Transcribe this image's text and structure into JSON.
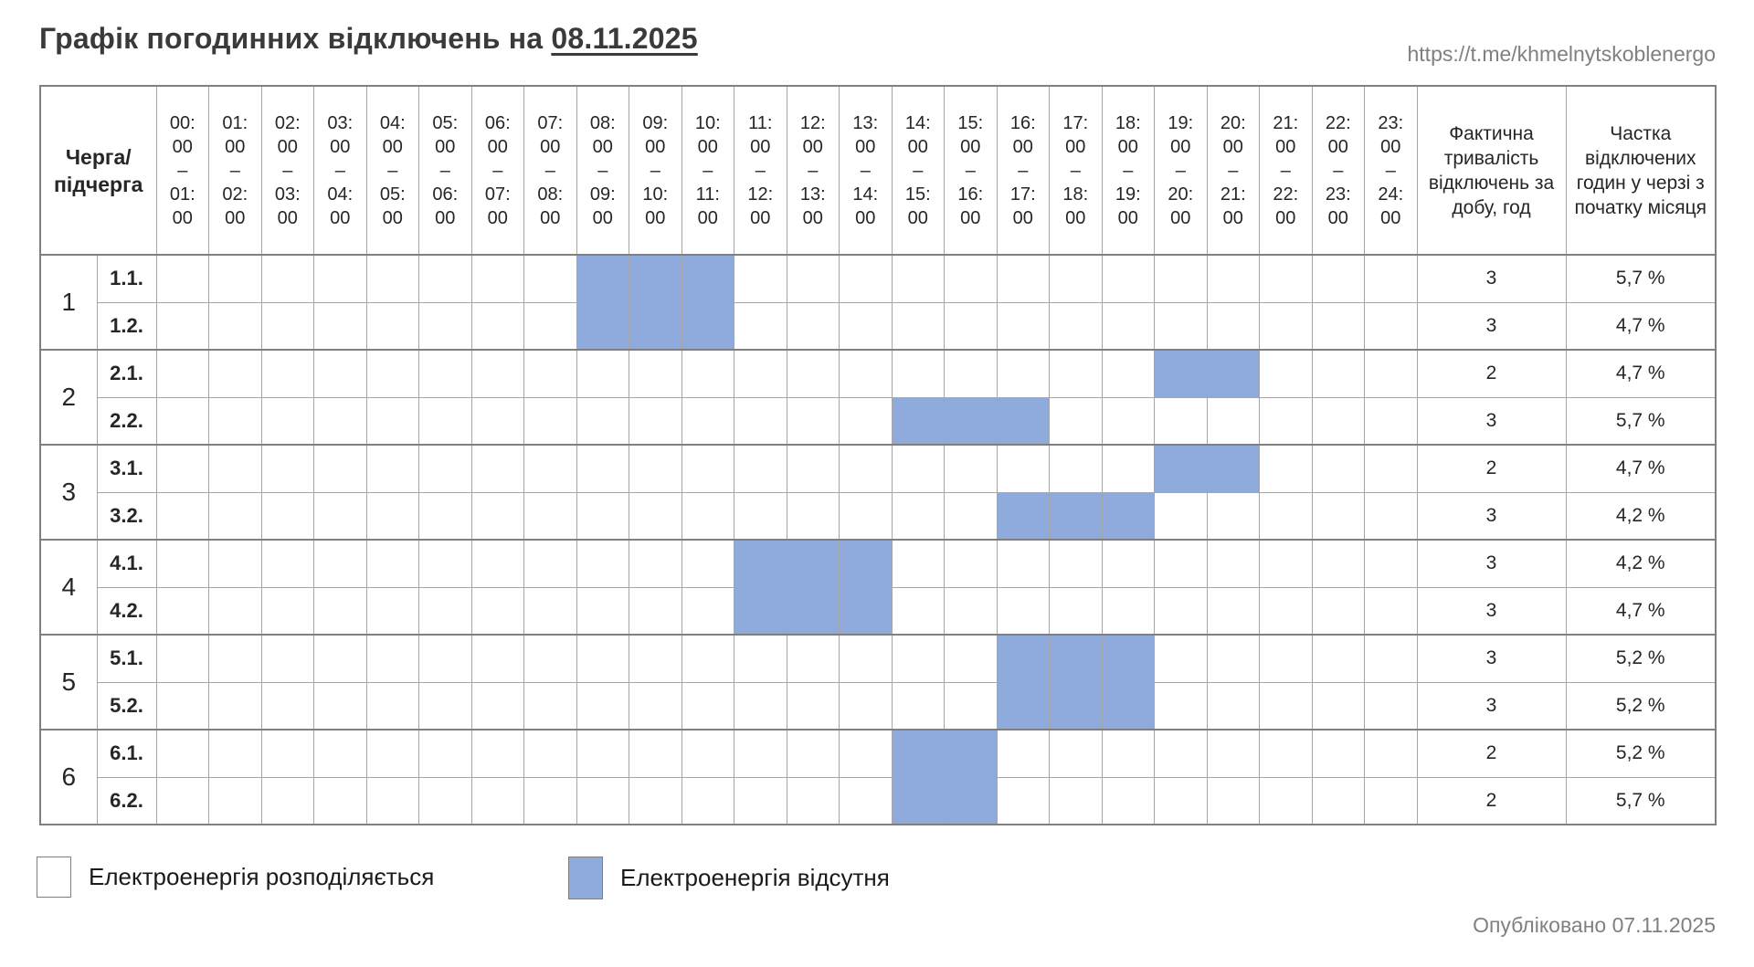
{
  "page": {
    "title_prefix": "Графік погодинних відключень на",
    "title_date": "08.11.2025",
    "link": "https://t.me/khmelnytskoblenergo",
    "published": "Опубліковано 07.11.2025"
  },
  "colors": {
    "outage_blue": "#8FAADC",
    "grid_line": "#A6A6A6",
    "outer_line": "#7F7F7F",
    "muted_text": "#808080",
    "title_text": "#3A3A3A"
  },
  "table": {
    "corner_header": "Черга/\nпідчерга",
    "duration_header": "Фактична тривалість відключень за добу, год",
    "share_header": "Частка відключених годин у черзі з початку місяця",
    "time_slots": [
      {
        "start": "00:00",
        "end": "01:00"
      },
      {
        "start": "01:00",
        "end": "02:00"
      },
      {
        "start": "02:00",
        "end": "03:00"
      },
      {
        "start": "03:00",
        "end": "04:00"
      },
      {
        "start": "04:00",
        "end": "05:00"
      },
      {
        "start": "05:00",
        "end": "06:00"
      },
      {
        "start": "06:00",
        "end": "07:00"
      },
      {
        "start": "07:00",
        "end": "08:00"
      },
      {
        "start": "08:00",
        "end": "09:00"
      },
      {
        "start": "09:00",
        "end": "10:00"
      },
      {
        "start": "10:00",
        "end": "11:00"
      },
      {
        "start": "11:00",
        "end": "12:00"
      },
      {
        "start": "12:00",
        "end": "13:00"
      },
      {
        "start": "13:00",
        "end": "14:00"
      },
      {
        "start": "14:00",
        "end": "15:00"
      },
      {
        "start": "15:00",
        "end": "16:00"
      },
      {
        "start": "16:00",
        "end": "17:00"
      },
      {
        "start": "17:00",
        "end": "18:00"
      },
      {
        "start": "18:00",
        "end": "19:00"
      },
      {
        "start": "19:00",
        "end": "20:00"
      },
      {
        "start": "20:00",
        "end": "21:00"
      },
      {
        "start": "21:00",
        "end": "22:00"
      },
      {
        "start": "22:00",
        "end": "23:00"
      },
      {
        "start": "23:00",
        "end": "24:00"
      }
    ],
    "groups": [
      {
        "number": "1",
        "rows": [
          {
            "label": "1.1.",
            "outage_hours": [
              8,
              9,
              10
            ],
            "duration": "3",
            "share": "5,7 %"
          },
          {
            "label": "1.2.",
            "outage_hours": [
              8,
              9,
              10
            ],
            "duration": "3",
            "share": "4,7 %"
          }
        ]
      },
      {
        "number": "2",
        "rows": [
          {
            "label": "2.1.",
            "outage_hours": [
              19,
              20
            ],
            "duration": "2",
            "share": "4,7 %"
          },
          {
            "label": "2.2.",
            "outage_hours": [
              14,
              15,
              16
            ],
            "duration": "3",
            "share": "5,7 %"
          }
        ]
      },
      {
        "number": "3",
        "rows": [
          {
            "label": "3.1.",
            "outage_hours": [
              19,
              20
            ],
            "duration": "2",
            "share": "4,7 %"
          },
          {
            "label": "3.2.",
            "outage_hours": [
              16,
              17,
              18
            ],
            "duration": "3",
            "share": "4,2 %"
          }
        ]
      },
      {
        "number": "4",
        "rows": [
          {
            "label": "4.1.",
            "outage_hours": [
              11,
              12,
              13
            ],
            "duration": "3",
            "share": "4,2 %"
          },
          {
            "label": "4.2.",
            "outage_hours": [
              11,
              12,
              13
            ],
            "duration": "3",
            "share": "4,7 %"
          }
        ]
      },
      {
        "number": "5",
        "rows": [
          {
            "label": "5.1.",
            "outage_hours": [
              16,
              17,
              18
            ],
            "duration": "3",
            "share": "5,2 %"
          },
          {
            "label": "5.2.",
            "outage_hours": [
              16,
              17,
              18
            ],
            "duration": "3",
            "share": "5,2 %"
          }
        ]
      },
      {
        "number": "6",
        "rows": [
          {
            "label": "6.1.",
            "outage_hours": [
              14,
              15
            ],
            "duration": "2",
            "share": "5,2 %"
          },
          {
            "label": "6.2.",
            "outage_hours": [
              14,
              15
            ],
            "duration": "2",
            "share": "5,7 %"
          }
        ]
      }
    ]
  },
  "legend": {
    "items": [
      {
        "label": "Електроенергія розподіляється",
        "meaning": "power-distributed",
        "swatch": "white"
      },
      {
        "label": "Електроенергія відсутня",
        "meaning": "power-absent",
        "swatch": "blue"
      }
    ]
  },
  "chart_data": {
    "type": "table",
    "title": "Графік погодинних відключень на 08.11.2025",
    "x_categories": [
      "00:00–01:00",
      "01:00–02:00",
      "02:00–03:00",
      "03:00–04:00",
      "04:00–05:00",
      "05:00–06:00",
      "06:00–07:00",
      "07:00–08:00",
      "08:00–09:00",
      "09:00–10:00",
      "10:00–11:00",
      "11:00–12:00",
      "12:00–13:00",
      "13:00–14:00",
      "14:00–15:00",
      "15:00–16:00",
      "16:00–17:00",
      "17:00–18:00",
      "18:00–19:00",
      "19:00–20:00",
      "20:00–21:00",
      "21:00–22:00",
      "22:00–23:00",
      "23:00–24:00"
    ],
    "row_header": "Черга/підчерга",
    "value_columns": [
      "Фактична тривалість відключень за добу, год",
      "Частка відключених годин у черзі з початку місяця"
    ],
    "rows": [
      {
        "queue": "1.1.",
        "outage_intervals": [
          "08:00–11:00"
        ],
        "outage_hours": [
          8,
          9,
          10
        ],
        "daily_duration_h": 3,
        "month_share_pct": 5.7
      },
      {
        "queue": "1.2.",
        "outage_intervals": [
          "08:00–11:00"
        ],
        "outage_hours": [
          8,
          9,
          10
        ],
        "daily_duration_h": 3,
        "month_share_pct": 4.7
      },
      {
        "queue": "2.1.",
        "outage_intervals": [
          "19:00–21:00"
        ],
        "outage_hours": [
          19,
          20
        ],
        "daily_duration_h": 2,
        "month_share_pct": 4.7
      },
      {
        "queue": "2.2.",
        "outage_intervals": [
          "14:00–17:00"
        ],
        "outage_hours": [
          14,
          15,
          16
        ],
        "daily_duration_h": 3,
        "month_share_pct": 5.7
      },
      {
        "queue": "3.1.",
        "outage_intervals": [
          "19:00–21:00"
        ],
        "outage_hours": [
          19,
          20
        ],
        "daily_duration_h": 2,
        "month_share_pct": 4.7
      },
      {
        "queue": "3.2.",
        "outage_intervals": [
          "16:00–19:00"
        ],
        "outage_hours": [
          16,
          17,
          18
        ],
        "daily_duration_h": 3,
        "month_share_pct": 4.2
      },
      {
        "queue": "4.1.",
        "outage_intervals": [
          "11:00–14:00"
        ],
        "outage_hours": [
          11,
          12,
          13
        ],
        "daily_duration_h": 3,
        "month_share_pct": 4.2
      },
      {
        "queue": "4.2.",
        "outage_intervals": [
          "11:00–14:00"
        ],
        "outage_hours": [
          11,
          12,
          13
        ],
        "daily_duration_h": 3,
        "month_share_pct": 4.7
      },
      {
        "queue": "5.1.",
        "outage_intervals": [
          "16:00–19:00"
        ],
        "outage_hours": [
          16,
          17,
          18
        ],
        "daily_duration_h": 3,
        "month_share_pct": 5.2
      },
      {
        "queue": "5.2.",
        "outage_intervals": [
          "16:00–19:00"
        ],
        "outage_hours": [
          16,
          17,
          18
        ],
        "daily_duration_h": 3,
        "month_share_pct": 5.2
      },
      {
        "queue": "6.1.",
        "outage_intervals": [
          "14:00–16:00"
        ],
        "outage_hours": [
          14,
          15
        ],
        "daily_duration_h": 2,
        "month_share_pct": 5.2
      },
      {
        "queue": "6.2.",
        "outage_intervals": [
          "14:00–16:00"
        ],
        "outage_hours": [
          14,
          15
        ],
        "daily_duration_h": 2,
        "month_share_pct": 5.7
      }
    ],
    "cell_legend": {
      "filled_blue": "Електроенергія відсутня",
      "empty_white": "Електроенергія розподіляється"
    },
    "legend_position": "bottom"
  }
}
